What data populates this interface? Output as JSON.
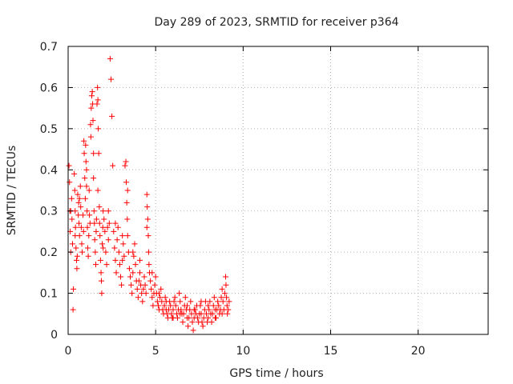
{
  "chart_data": {
    "type": "scatter",
    "title": "Day 289 of 2023, SRMTID for receiver p364",
    "xlabel": "GPS time / hours",
    "ylabel": "SRMTID / TECUs",
    "xlim": [
      0,
      24
    ],
    "ylim": [
      0,
      0.7
    ],
    "xticks": [
      0,
      5,
      10,
      15,
      20
    ],
    "yticks": [
      0,
      0.1,
      0.2,
      0.3,
      0.4,
      0.5,
      0.6,
      0.7
    ],
    "ytick_labels": [
      "0",
      "0.1",
      "0.2",
      "0.3",
      "0.4",
      "0.5",
      "0.6",
      "0.7"
    ],
    "grid": true,
    "marker": "+",
    "color": "#ff0000",
    "series": [
      {
        "name": "SRMTID",
        "points": [
          [
            0.05,
            0.41
          ],
          [
            0.08,
            0.37
          ],
          [
            0.1,
            0.3
          ],
          [
            0.12,
            0.25
          ],
          [
            0.15,
            0.2
          ],
          [
            0.2,
            0.33
          ],
          [
            0.22,
            0.28
          ],
          [
            0.25,
            0.22
          ],
          [
            0.28,
            0.06
          ],
          [
            0.3,
            0.11
          ],
          [
            0.35,
            0.39
          ],
          [
            0.38,
            0.35
          ],
          [
            0.4,
            0.3
          ],
          [
            0.42,
            0.26
          ],
          [
            0.45,
            0.21
          ],
          [
            0.48,
            0.18
          ],
          [
            0.5,
            0.16
          ],
          [
            0.52,
            0.19
          ],
          [
            0.55,
            0.34
          ],
          [
            0.58,
            0.29
          ],
          [
            0.6,
            0.32
          ],
          [
            0.62,
            0.27
          ],
          [
            0.65,
            0.24
          ],
          [
            0.7,
            0.36
          ],
          [
            0.72,
            0.31
          ],
          [
            0.75,
            0.26
          ],
          [
            0.78,
            0.22
          ],
          [
            0.8,
            0.2
          ],
          [
            0.85,
            0.29
          ],
          [
            0.88,
            0.25
          ],
          [
            0.9,
            0.47
          ],
          [
            0.92,
            0.44
          ],
          [
            0.95,
            0.38
          ],
          [
            0.98,
            0.33
          ],
          [
            1.0,
            0.46
          ],
          [
            1.02,
            0.42
          ],
          [
            1.05,
            0.36
          ],
          [
            1.08,
            0.3
          ],
          [
            1.1,
            0.26
          ],
          [
            1.12,
            0.21
          ],
          [
            1.15,
            0.19
          ],
          [
            1.18,
            0.24
          ],
          [
            1.2,
            0.35
          ],
          [
            1.22,
            0.29
          ],
          [
            1.25,
            0.27
          ],
          [
            1.28,
            0.51
          ],
          [
            1.3,
            0.48
          ],
          [
            1.32,
            0.55
          ],
          [
            1.35,
            0.58
          ],
          [
            1.38,
            0.59
          ],
          [
            1.4,
            0.56
          ],
          [
            1.42,
            0.52
          ],
          [
            1.45,
            0.44
          ],
          [
            1.48,
            0.3
          ],
          [
            1.5,
            0.27
          ],
          [
            1.52,
            0.23
          ],
          [
            1.55,
            0.2
          ],
          [
            1.58,
            0.17
          ],
          [
            1.6,
            0.25
          ],
          [
            1.62,
            0.28
          ],
          [
            1.65,
            0.56
          ],
          [
            1.68,
            0.6
          ],
          [
            1.7,
            0.57
          ],
          [
            1.72,
            0.5
          ],
          [
            1.75,
            0.44
          ],
          [
            1.78,
            0.31
          ],
          [
            1.8,
            0.27
          ],
          [
            1.82,
            0.24
          ],
          [
            1.85,
            0.18
          ],
          [
            1.88,
            0.15
          ],
          [
            1.9,
            0.13
          ],
          [
            1.92,
            0.1
          ],
          [
            1.95,
            0.22
          ],
          [
            1.98,
            0.26
          ],
          [
            2.0,
            0.3
          ],
          [
            2.05,
            0.28
          ],
          [
            2.1,
            0.25
          ],
          [
            2.15,
            0.2
          ],
          [
            2.2,
            0.17
          ],
          [
            2.25,
            0.26
          ],
          [
            2.3,
            0.3
          ],
          [
            2.35,
            0.27
          ],
          [
            2.4,
            0.67
          ],
          [
            2.45,
            0.62
          ],
          [
            2.5,
            0.53
          ],
          [
            2.55,
            0.41
          ],
          [
            2.6,
            0.25
          ],
          [
            2.65,
            0.21
          ],
          [
            2.7,
            0.18
          ],
          [
            2.75,
            0.15
          ],
          [
            2.8,
            0.23
          ],
          [
            2.85,
            0.26
          ],
          [
            2.9,
            0.2
          ],
          [
            2.95,
            0.17
          ],
          [
            3.0,
            0.14
          ],
          [
            3.05,
            0.12
          ],
          [
            3.1,
            0.18
          ],
          [
            3.15,
            0.22
          ],
          [
            3.2,
            0.19
          ],
          [
            3.25,
            0.41
          ],
          [
            3.3,
            0.42
          ],
          [
            3.32,
            0.37
          ],
          [
            3.35,
            0.32
          ],
          [
            3.38,
            0.28
          ],
          [
            3.4,
            0.24
          ],
          [
            3.45,
            0.2
          ],
          [
            3.5,
            0.16
          ],
          [
            3.55,
            0.14
          ],
          [
            3.6,
            0.12
          ],
          [
            3.65,
            0.1
          ],
          [
            3.7,
            0.15
          ],
          [
            3.75,
            0.19
          ],
          [
            3.8,
            0.22
          ],
          [
            3.85,
            0.17
          ],
          [
            3.9,
            0.13
          ],
          [
            3.95,
            0.11
          ],
          [
            4.0,
            0.09
          ],
          [
            4.05,
            0.13
          ],
          [
            4.1,
            0.15
          ],
          [
            4.15,
            0.12
          ],
          [
            4.2,
            0.1
          ],
          [
            4.25,
            0.08
          ],
          [
            4.3,
            0.11
          ],
          [
            4.35,
            0.14
          ],
          [
            4.4,
            0.12
          ],
          [
            4.45,
            0.1
          ],
          [
            4.5,
            0.34
          ],
          [
            4.52,
            0.31
          ],
          [
            4.55,
            0.28
          ],
          [
            4.58,
            0.24
          ],
          [
            4.6,
            0.2
          ],
          [
            4.62,
            0.17
          ],
          [
            4.65,
            0.15
          ],
          [
            4.7,
            0.13
          ],
          [
            4.75,
            0.11
          ],
          [
            4.8,
            0.09
          ],
          [
            4.85,
            0.07
          ],
          [
            4.9,
            0.1
          ],
          [
            4.95,
            0.12
          ],
          [
            5.0,
            0.14
          ],
          [
            5.05,
            0.1
          ],
          [
            5.1,
            0.08
          ],
          [
            5.15,
            0.07
          ],
          [
            5.2,
            0.06
          ],
          [
            5.25,
            0.09
          ],
          [
            5.3,
            0.11
          ],
          [
            5.35,
            0.08
          ],
          [
            5.4,
            0.06
          ],
          [
            5.45,
            0.05
          ],
          [
            5.5,
            0.07
          ],
          [
            5.55,
            0.09
          ],
          [
            5.6,
            0.06
          ],
          [
            5.65,
            0.05
          ],
          [
            5.7,
            0.04
          ],
          [
            5.75,
            0.06
          ],
          [
            5.8,
            0.08
          ],
          [
            5.85,
            0.07
          ],
          [
            5.9,
            0.05
          ],
          [
            5.95,
            0.04
          ],
          [
            6.0,
            0.06
          ],
          [
            6.05,
            0.08
          ],
          [
            6.1,
            0.09
          ],
          [
            6.15,
            0.07
          ],
          [
            6.2,
            0.05
          ],
          [
            6.25,
            0.04
          ],
          [
            6.3,
            0.06
          ],
          [
            6.35,
            0.1
          ],
          [
            6.4,
            0.08
          ],
          [
            6.45,
            0.06
          ],
          [
            6.5,
            0.05
          ],
          [
            6.55,
            0.03
          ],
          [
            6.6,
            0.05
          ],
          [
            6.65,
            0.07
          ],
          [
            6.7,
            0.09
          ],
          [
            6.75,
            0.06
          ],
          [
            6.8,
            0.04
          ],
          [
            6.85,
            0.02
          ],
          [
            6.9,
            0.04
          ],
          [
            6.95,
            0.06
          ],
          [
            7.0,
            0.08
          ],
          [
            7.05,
            0.05
          ],
          [
            7.1,
            0.03
          ],
          [
            7.15,
            0.01
          ],
          [
            7.2,
            0.04
          ],
          [
            7.25,
            0.06
          ],
          [
            7.3,
            0.05
          ],
          [
            7.35,
            0.07
          ],
          [
            7.4,
            0.04
          ],
          [
            7.45,
            0.03
          ],
          [
            7.5,
            0.05
          ],
          [
            7.55,
            0.07
          ],
          [
            7.6,
            0.05
          ],
          [
            7.65,
            0.03
          ],
          [
            7.7,
            0.02
          ],
          [
            7.75,
            0.04
          ],
          [
            7.8,
            0.06
          ],
          [
            7.85,
            0.08
          ],
          [
            7.9,
            0.05
          ],
          [
            7.95,
            0.03
          ],
          [
            8.0,
            0.04
          ],
          [
            8.05,
            0.06
          ],
          [
            8.1,
            0.08
          ],
          [
            8.15,
            0.05
          ],
          [
            8.2,
            0.03
          ],
          [
            8.25,
            0.05
          ],
          [
            8.3,
            0.07
          ],
          [
            8.35,
            0.09
          ],
          [
            8.4,
            0.06
          ],
          [
            8.45,
            0.04
          ],
          [
            8.5,
            0.06
          ],
          [
            8.55,
            0.08
          ],
          [
            8.6,
            0.07
          ],
          [
            8.65,
            0.05
          ],
          [
            8.7,
            0.06
          ],
          [
            8.75,
            0.09
          ],
          [
            8.8,
            0.11
          ],
          [
            8.85,
            0.08
          ],
          [
            8.9,
            0.06
          ],
          [
            8.95,
            0.1
          ],
          [
            9.0,
            0.14
          ],
          [
            9.02,
            0.12
          ],
          [
            9.05,
            0.09
          ],
          [
            9.08,
            0.07
          ],
          [
            9.1,
            0.05
          ],
          [
            9.15,
            0.06
          ],
          [
            9.2,
            0.08
          ],
          [
            0.15,
            0.3
          ],
          [
            0.4,
            0.24
          ],
          [
            0.65,
            0.33
          ],
          [
            1.05,
            0.4
          ],
          [
            1.45,
            0.38
          ],
          [
            1.7,
            0.35
          ],
          [
            2.0,
            0.21
          ],
          [
            2.3,
            0.23
          ],
          [
            2.7,
            0.27
          ],
          [
            3.1,
            0.24
          ],
          [
            3.4,
            0.35
          ],
          [
            3.7,
            0.2
          ],
          [
            4.1,
            0.18
          ],
          [
            4.5,
            0.26
          ],
          [
            4.8,
            0.15
          ],
          [
            5.2,
            0.1
          ],
          [
            5.6,
            0.08
          ],
          [
            6.0,
            0.04
          ],
          [
            6.4,
            0.05
          ],
          [
            6.8,
            0.07
          ],
          [
            7.2,
            0.06
          ],
          [
            7.6,
            0.08
          ],
          [
            8.0,
            0.07
          ],
          [
            8.4,
            0.04
          ],
          [
            8.8,
            0.05
          ]
        ]
      }
    ]
  }
}
